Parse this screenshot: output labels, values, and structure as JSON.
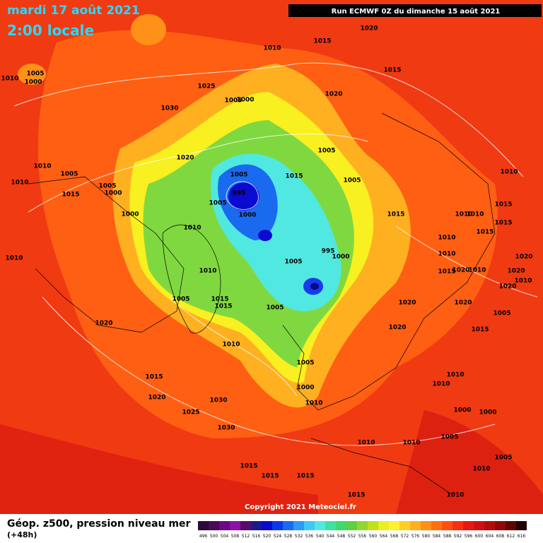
{
  "header": {
    "date": "mardi 17 août 2021",
    "time": "2:00 locale",
    "run": "Run ECMWF 0Z du dimanche 15 août 2021"
  },
  "copyright": "Copyright 2021 Meteociel.fr",
  "isobar_labels": [
    1010,
    1005,
    1000,
    1025,
    1030,
    1005,
    1000,
    1010,
    1015,
    1020,
    1015,
    1020,
    1005,
    1020,
    1010,
    1005,
    1005,
    1000,
    1015,
    1010,
    1005,
    995,
    1000,
    1005,
    1015,
    1005,
    1015,
    1010,
    1015,
    1010,
    1010,
    1015,
    1015,
    1010,
    1010,
    1015,
    1020,
    1010,
    1020,
    1020,
    1010,
    1020,
    1000,
    1010,
    1010,
    995,
    1000,
    1005,
    1020,
    1020,
    1005,
    1015,
    1020,
    1005,
    1015,
    1015,
    1005,
    1010,
    1020,
    1010,
    1005,
    1000,
    1010,
    1015,
    1020,
    1025,
    1030,
    1030,
    1010,
    1010,
    1000,
    1000,
    1005,
    1010,
    1010,
    1005,
    1010,
    1015,
    1015,
    1015,
    1015,
    1010
  ],
  "legend": {
    "title": "Géop. z500, pression niveau mer",
    "lead": "(+48h)",
    "levels": [
      496,
      500,
      504,
      508,
      512,
      516,
      520,
      524,
      528,
      532,
      536,
      540,
      544,
      548,
      552,
      556,
      560,
      564,
      568,
      572,
      576,
      580,
      584,
      588,
      592,
      596,
      600,
      604,
      608,
      612,
      616
    ],
    "colors": [
      "#2c0a3a",
      "#4b0a5a",
      "#6a0a82",
      "#8a12a8",
      "#5a0a6a",
      "#1a1a8a",
      "#0a0ad0",
      "#0a3ae8",
      "#1a6af0",
      "#2a9af5",
      "#40c8f8",
      "#50e8e0",
      "#40e0a0",
      "#40d870",
      "#60d040",
      "#90d830",
      "#c0e020",
      "#e8f020",
      "#fff030",
      "#ffd020",
      "#ffb020",
      "#ff9018",
      "#ff7010",
      "#ff5010",
      "#f83010",
      "#e81810",
      "#d01010",
      "#b00c0c",
      "#900808",
      "#600404",
      "#200000"
    ]
  }
}
